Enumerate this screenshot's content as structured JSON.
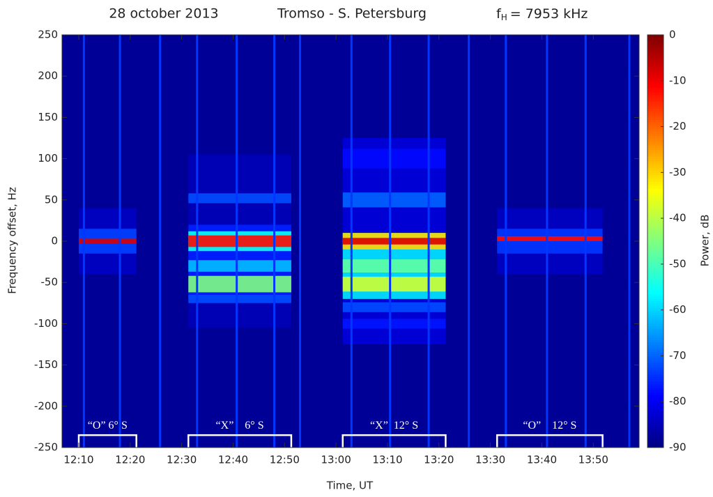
{
  "chart_data": {
    "type": "spectrogram",
    "title_date": "28 october 2013",
    "title_path": "Tromso - S. Petersburg",
    "title_freq": {
      "symbol": "f",
      "subscript": "H",
      "text": "= 7953 kHz"
    },
    "xlabel": "Time, UT",
    "ylabel": "Frequency offset, Hz",
    "colorbar_label": "Power, dB",
    "xlim": [
      726.75,
      838.9
    ],
    "xticks": [
      {
        "value": 730,
        "label": "12:10"
      },
      {
        "value": 740,
        "label": "12:20"
      },
      {
        "value": 750,
        "label": "12:30"
      },
      {
        "value": 760,
        "label": "12:40"
      },
      {
        "value": 770,
        "label": "12:50"
      },
      {
        "value": 780,
        "label": "13:00"
      },
      {
        "value": 790,
        "label": "13:10"
      },
      {
        "value": 800,
        "label": "13:20"
      },
      {
        "value": 810,
        "label": "13:30"
      },
      {
        "value": 820,
        "label": "13:40"
      },
      {
        "value": 830,
        "label": "13:50"
      }
    ],
    "ylim": [
      -250,
      250
    ],
    "yticks": [
      -250,
      -200,
      -150,
      -100,
      -50,
      0,
      50,
      100,
      150,
      200,
      250
    ],
    "clim": [
      -90,
      0
    ],
    "cticks": [
      0,
      -10,
      -20,
      -30,
      -40,
      -50,
      -60,
      -70,
      -80,
      -90
    ],
    "colormap": "jet",
    "background": -88,
    "stripes": {
      "power": -74,
      "times": [
        731,
        738,
        745.8,
        753,
        760.7,
        768,
        773,
        783,
        790.5,
        798,
        805.8,
        813,
        821,
        828.5,
        837
      ]
    },
    "sessions": [
      {
        "start": 730,
        "end": 741.2,
        "label": "“O” 6° S",
        "bands": [
          {
            "freq": 0,
            "half_width": 40,
            "power": -84
          },
          {
            "freq": 0,
            "half_width": 15,
            "power": -73
          },
          {
            "freq": 0,
            "half_width": 3,
            "power": -8
          }
        ]
      },
      {
        "start": 751.3,
        "end": 771.3,
        "label": "“X”    6° S",
        "bands": [
          {
            "freq": 0,
            "half_width": 105,
            "power": -85
          },
          {
            "freq": -25,
            "half_width": 45,
            "power": -76
          },
          {
            "freq": 52,
            "half_width": 6,
            "power": -72
          },
          {
            "freq": -30,
            "half_width": 7,
            "power": -62
          },
          {
            "freq": -70,
            "half_width": 5,
            "power": -72
          },
          {
            "freq": -52,
            "half_width": 10,
            "power": -45
          },
          {
            "freq": 0,
            "half_width": 12,
            "power": -55
          },
          {
            "freq": 0,
            "half_width": 7,
            "power": -12
          }
        ]
      },
      {
        "start": 781.3,
        "end": 801.3,
        "label": "“X”  12° S",
        "bands": [
          {
            "freq": 0,
            "half_width": 125,
            "power": -82
          },
          {
            "freq": 100,
            "half_width": 12,
            "power": -78
          },
          {
            "freq": 50,
            "half_width": 9,
            "power": -70
          },
          {
            "freq": -80,
            "half_width": 6,
            "power": -72
          },
          {
            "freq": -100,
            "half_width": 6,
            "power": -77
          },
          {
            "freq": -30,
            "half_width": 40,
            "power": -58
          },
          {
            "freq": -30,
            "half_width": 8,
            "power": -48
          },
          {
            "freq": -52,
            "half_width": 9,
            "power": -38
          },
          {
            "freq": 0,
            "half_width": 10,
            "power": -30
          },
          {
            "freq": 0,
            "half_width": 4,
            "power": -8
          }
        ]
      },
      {
        "start": 811.3,
        "end": 831.8,
        "label": "“O”    12° S",
        "bands": [
          {
            "freq": 0,
            "half_width": 40,
            "power": -84
          },
          {
            "freq": 0,
            "half_width": 15,
            "power": -74
          },
          {
            "freq": 3,
            "half_width": 3,
            "power": -12
          }
        ]
      }
    ],
    "session_marker_freq": -235
  }
}
